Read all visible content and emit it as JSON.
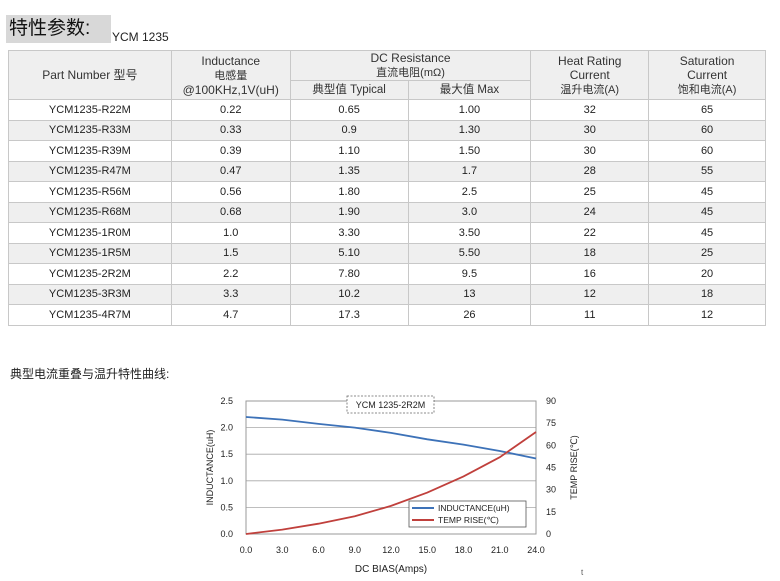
{
  "header": {
    "title": "特性参数:",
    "model": "YCM 1235"
  },
  "table": {
    "columns": {
      "part_number": "Part Number  型号",
      "inductance_en": "Inductance",
      "inductance_cn": "电感量",
      "inductance_cond": "@100KHz,1V(uH)",
      "dcr_en": "DC Resistance",
      "dcr_cn": "直流电阻(mΩ)",
      "dcr_typ": "典型值 Typical",
      "dcr_max": "最大值 Max",
      "heat_en1": "Heat Rating",
      "heat_en2": "Current",
      "heat_cn": "温升电流(A)",
      "sat_en1": "Saturation",
      "sat_en2": "Current",
      "sat_cn": "饱和电流(A)"
    },
    "rows": [
      [
        "YCM1235-R22M",
        "0.22",
        "0.65",
        "1.00",
        "32",
        "65"
      ],
      [
        "YCM1235-R33M",
        "0.33",
        "0.9",
        "1.30",
        "30",
        "60"
      ],
      [
        "YCM1235-R39M",
        "0.39",
        "1.10",
        "1.50",
        "30",
        "60"
      ],
      [
        "YCM1235-R47M",
        "0.47",
        "1.35",
        "1.7",
        "28",
        "55"
      ],
      [
        "YCM1235-R56M",
        "0.56",
        "1.80",
        "2.5",
        "25",
        "45"
      ],
      [
        "YCM1235-R68M",
        "0.68",
        "1.90",
        "3.0",
        "24",
        "45"
      ],
      [
        "YCM1235-1R0M",
        "1.0",
        "3.30",
        "3.50",
        "22",
        "45"
      ],
      [
        "YCM1235-1R5M",
        "1.5",
        "5.10",
        "5.50",
        "18",
        "25"
      ],
      [
        "YCM1235-2R2M",
        "2.2",
        "7.80",
        "9.5",
        "16",
        "20"
      ],
      [
        "YCM1235-3R3M",
        "3.3",
        "10.2",
        "13",
        "12",
        "18"
      ],
      [
        "YCM1235-4R7M",
        "4.7",
        "17.3",
        "26",
        "11",
        "12"
      ]
    ]
  },
  "curves_title": "典型电流重叠与温升特性曲线:",
  "chart_data": {
    "type": "line",
    "title": "YCM 1235-2R2M",
    "xlabel": "DC BIAS(Amps)",
    "ylabel": "INDUCTANCE(uH)",
    "y2label": "TEMP RISE(℃)",
    "xlim": [
      0,
      24
    ],
    "ylim": [
      0,
      2.5
    ],
    "y2lim": [
      0,
      90
    ],
    "xticks": [
      "0.0",
      "3.0",
      "6.0",
      "9.0",
      "12.0",
      "15.0",
      "18.0",
      "21.0",
      "24.0"
    ],
    "yticks": [
      "0.0",
      "0.5",
      "1.0",
      "1.5",
      "2.0",
      "2.5"
    ],
    "y2ticks": [
      "0",
      "15",
      "30",
      "45",
      "60",
      "75",
      "90"
    ],
    "grid": true,
    "legend_position": "bottom-right",
    "series": [
      {
        "name": "INDUCTANCE(uH)",
        "axis": "left",
        "color": "#3d72b8",
        "x": [
          0,
          3,
          6,
          9,
          12,
          15,
          18,
          21,
          24
        ],
        "y": [
          2.2,
          2.15,
          2.07,
          2.0,
          1.9,
          1.78,
          1.68,
          1.56,
          1.42
        ]
      },
      {
        "name": "TEMP RISE(℃)",
        "axis": "right",
        "color": "#c0403c",
        "x": [
          0,
          3,
          6,
          9,
          12,
          15,
          18,
          21,
          24
        ],
        "y": [
          0,
          3,
          7,
          12,
          19,
          28,
          39,
          52,
          69
        ]
      }
    ]
  },
  "footer_mark": "t"
}
